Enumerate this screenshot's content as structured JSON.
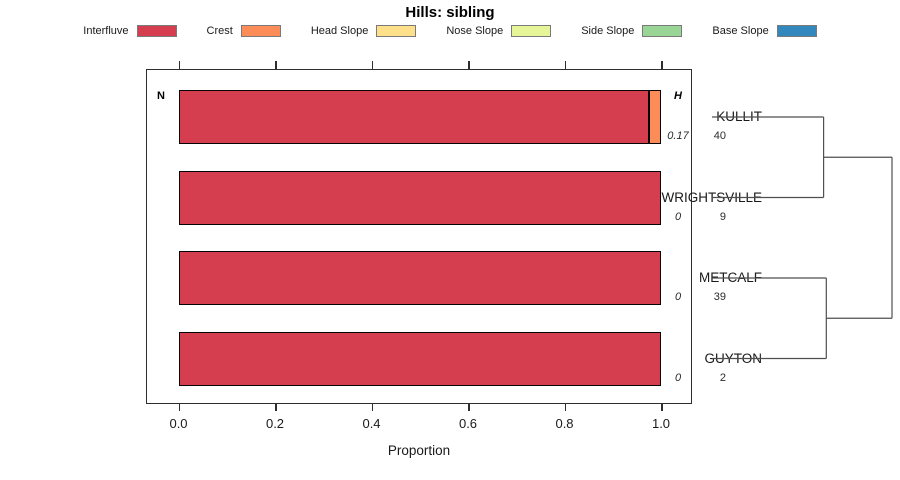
{
  "chart_data": {
    "type": "bar",
    "variant": "horizontal-stacked-proportion",
    "title": "Hills: sibling",
    "xlabel": "Proportion",
    "xlim": [
      0,
      1
    ],
    "xticks": [
      "0.0",
      "0.2",
      "0.4",
      "0.6",
      "0.8",
      "1.0"
    ],
    "xtick_values": [
      0,
      0.2,
      0.4,
      0.6,
      0.8,
      1.0
    ],
    "categories": [
      "Interfluve",
      "Crest",
      "Head Slope",
      "Nose Slope",
      "Side Slope",
      "Base Slope"
    ],
    "colors": {
      "Interfluve": "#D53E4F",
      "Crest": "#FC8D59",
      "Head Slope": "#FEE08B",
      "Nose Slope": "#E6F598",
      "Side Slope": "#99D594",
      "Base Slope": "#3288BD"
    },
    "columns": {
      "n_header": "N",
      "h_header": "H"
    },
    "rows": [
      {
        "label": "KULLIT",
        "n": "40",
        "h": "0.17",
        "segments": [
          {
            "category": "Interfluve",
            "value": 0.975
          },
          {
            "category": "Crest",
            "value": 0.025
          }
        ]
      },
      {
        "label": "WRIGHTSVILLE",
        "n": "9",
        "h": "0",
        "segments": [
          {
            "category": "Interfluve",
            "value": 1.0
          }
        ]
      },
      {
        "label": "METCALF",
        "n": "39",
        "h": "0",
        "segments": [
          {
            "category": "Interfluve",
            "value": 1.0
          }
        ]
      },
      {
        "label": "GUYTON",
        "n": "2",
        "h": "0",
        "segments": [
          {
            "category": "Interfluve",
            "value": 1.0
          }
        ]
      }
    ],
    "dendrogram": {
      "structure": "((KULLIT,WRIGHTSVILLE),(METCALF,GUYTON))",
      "merges": [
        {
          "id": "merge-0",
          "members": [
            "KULLIT",
            "WRIGHTSVILLE"
          ],
          "height": 0.62
        },
        {
          "id": "merge-1",
          "members": [
            "METCALF",
            "GUYTON"
          ],
          "height": 0.635
        },
        {
          "id": "merge-2",
          "members": [
            "merge-0",
            "merge-1"
          ],
          "height": 1.0
        }
      ]
    }
  },
  "legend": [
    {
      "label": "Interfluve",
      "color": "#D53E4F"
    },
    {
      "label": "Crest",
      "color": "#FC8D59"
    },
    {
      "label": "Head Slope",
      "color": "#FEE08B"
    },
    {
      "label": "Nose Slope",
      "color": "#E6F598"
    },
    {
      "label": "Side Slope",
      "color": "#99D594"
    },
    {
      "label": "Base Slope",
      "color": "#3288BD"
    }
  ]
}
